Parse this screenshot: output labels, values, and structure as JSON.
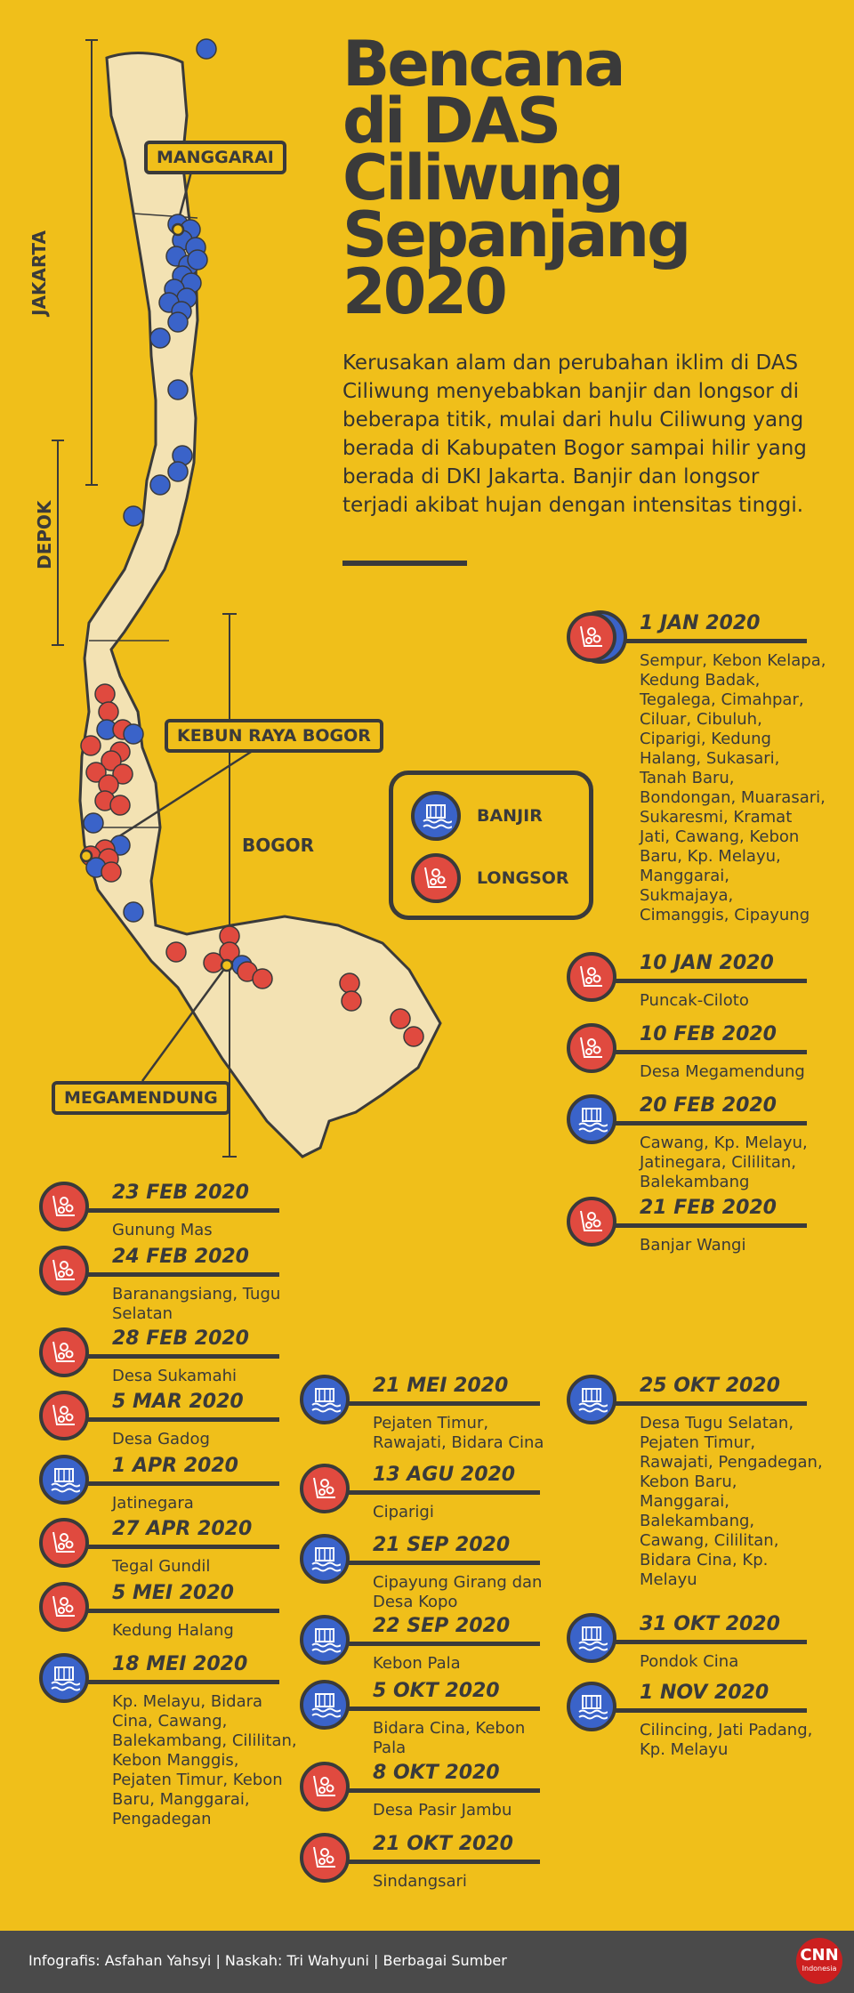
{
  "title": {
    "line1": "Bencana",
    "line2": "di DAS",
    "line3": "Ciliwung",
    "line4": "Sepanjang",
    "line5": "2020"
  },
  "lead": "Kerusakan alam dan perubahan iklim di DAS Ciliwung menyebabkan banjir dan longsor di beberapa titik, mulai dari hulu Ciliwung yang berada di Kabupaten Bogor sampai hilir yang berada di DKI Jakarta. Banjir dan longsor terjadi akibat hujan dengan intensitas tinggi.",
  "map": {
    "regions": {
      "jakarta": "JAKARTA",
      "depok": "DEPOK",
      "bogor": "BOGOR"
    },
    "callouts": {
      "manggarai": "MANGGARAI",
      "kebun_raya": "KEBUN RAYA BOGOR",
      "megamendung": "MEGAMENDUNG"
    }
  },
  "legend": {
    "banjir": "BANJIR",
    "longsor": "LONGSOR"
  },
  "colors": {
    "background": "#f0bf1a",
    "banjir": "#3a63c9",
    "longsor": "#e04a3f",
    "ink": "#3a3a3a",
    "land": "#f3e2b3"
  },
  "events": [
    {
      "date": "1 JAN 2020",
      "type": "both",
      "loc": "Sempur, Kebon Kelapa, Kedung Badak, Tegalega, Cimahpar, Ciluar, Cibuluh, Ciparigi, Kedung Halang, Sukasari, Tanah Baru, Bondongan, Muarasari, Sukaresmi, Kramat Jati, Cawang, Kebon Baru, Kp. Melayu, Manggarai, Sukmajaya, Cimanggis, Cipayung"
    },
    {
      "date": "10 JAN 2020",
      "type": "longsor",
      "loc": "Puncak-Ciloto"
    },
    {
      "date": "10 FEB 2020",
      "type": "longsor",
      "loc": "Desa Megamendung"
    },
    {
      "date": "20 FEB 2020",
      "type": "banjir",
      "loc": "Cawang, Kp. Melayu, Jatinegara, Cililitan, Balekambang"
    },
    {
      "date": "21 FEB 2020",
      "type": "longsor",
      "loc": "Banjar Wangi"
    },
    {
      "date": "23 FEB 2020",
      "type": "longsor",
      "loc": "Gunung Mas"
    },
    {
      "date": "24 FEB 2020",
      "type": "longsor",
      "loc": "Baranangsiang, Tugu Selatan"
    },
    {
      "date": "28 FEB 2020",
      "type": "longsor",
      "loc": "Desa Sukamahi"
    },
    {
      "date": "5 MAR 2020",
      "type": "longsor",
      "loc": "Desa Gadog"
    },
    {
      "date": "1 APR 2020",
      "type": "banjir",
      "loc": "Jatinegara"
    },
    {
      "date": "27 APR  2020",
      "type": "longsor",
      "loc": "Tegal Gundil"
    },
    {
      "date": "5 MEI 2020",
      "type": "longsor",
      "loc": "Kedung Halang"
    },
    {
      "date": "18 MEI 2020",
      "type": "banjir",
      "loc": "Kp. Melayu, Bidara Cina, Cawang, Balekambang, Cililitan, Kebon Manggis, Pejaten Timur, Kebon Baru, Manggarai, Pengadegan"
    },
    {
      "date": "21 MEI 2020",
      "type": "banjir",
      "loc": "Pejaten Timur, Rawajati, Bidara Cina"
    },
    {
      "date": "13 AGU 2020",
      "type": "longsor",
      "loc": "Ciparigi"
    },
    {
      "date": "21 SEP 2020",
      "type": "banjir",
      "loc": "Cipayung Girang dan Desa Kopo"
    },
    {
      "date": "22 SEP 2020",
      "type": "banjir",
      "loc": "Kebon Pala"
    },
    {
      "date": "5 OKT 2020",
      "type": "banjir",
      "loc": "Bidara Cina, Kebon Pala"
    },
    {
      "date": "8 OKT 2020",
      "type": "longsor",
      "loc": "Desa Pasir Jambu"
    },
    {
      "date": "21 OKT 2020",
      "type": "longsor",
      "loc": "Sindangsari"
    },
    {
      "date": "25 OKT 2020",
      "type": "banjir",
      "loc": "Desa Tugu Selatan, Pejaten Timur, Rawajati, Pengadegan, Kebon Baru, Manggarai, Balekambang, Cawang, Cililitan, Bidara Cina, Kp. Melayu"
    },
    {
      "date": "31 OKT 2020",
      "type": "banjir",
      "loc": "Pondok Cina"
    },
    {
      "date": "1 NOV 2020",
      "type": "banjir",
      "loc": "Cilincing, Jati Padang, Kp. Melayu"
    }
  ],
  "footer": {
    "credits": "Infografis: Asfahan Yahsyi | Naskah: Tri Wahyuni | Berbagai Sumber",
    "logo": "CNN",
    "logo_sub": "Indonesia"
  }
}
